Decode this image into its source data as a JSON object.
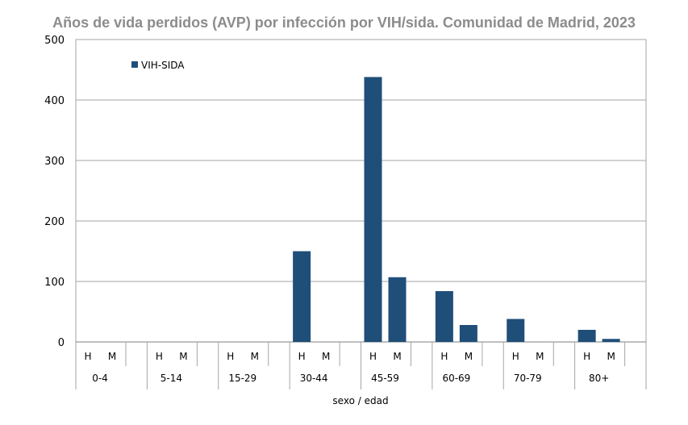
{
  "chart_data": {
    "type": "bar",
    "title": "Años de vida perdidos (AVP) por infección por VIH/sida. Comunidad de Madrid, 2023",
    "xlabel": "sexo / edad",
    "ylabel": "",
    "ylim": [
      0,
      500
    ],
    "yticks": [
      0,
      100,
      200,
      300,
      400,
      500
    ],
    "grid": true,
    "legend_position": "top-left",
    "age_groups": [
      "0-4",
      "5-14",
      "15-29",
      "30-44",
      "45-59",
      "60-69",
      "70-79",
      "80+"
    ],
    "sex_labels": [
      "H",
      "M"
    ],
    "color": "#1f4e79",
    "series": [
      {
        "name": "VIH-SIDA",
        "values": [
          [
            0,
            0
          ],
          [
            0,
            0
          ],
          [
            0,
            0
          ],
          [
            150,
            0
          ],
          [
            438,
            107
          ],
          [
            84,
            28
          ],
          [
            38,
            0
          ],
          [
            20,
            5
          ]
        ]
      }
    ]
  }
}
